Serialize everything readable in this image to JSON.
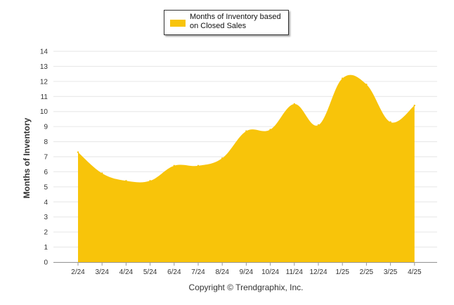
{
  "colors": {
    "area": "#f8c40a",
    "grid": "#e6e6e6",
    "axis": "#999999"
  },
  "legend": {
    "label": "Months of Inventory based on Closed Sales"
  },
  "footer": {
    "copyright": "Copyright © Trendgraphix, Inc."
  },
  "chart_data": {
    "type": "area",
    "ylabel": "Months of Inventory",
    "ylim": [
      0,
      14
    ],
    "yticks": [
      0,
      1,
      2,
      3,
      4,
      5,
      6,
      7,
      8,
      9,
      10,
      11,
      12,
      13,
      14
    ],
    "categories": [
      "2/24",
      "3/24",
      "4/24",
      "5/24",
      "6/24",
      "7/24",
      "8/24",
      "9/24",
      "10/24",
      "11/24",
      "12/24",
      "1/25",
      "2/25",
      "3/25",
      "4/25"
    ],
    "series": [
      {
        "name": "Months of Inventory based on Closed Sales",
        "values": [
          7.3,
          5.9,
          5.4,
          5.4,
          6.4,
          6.4,
          6.9,
          8.7,
          8.8,
          10.5,
          9.1,
          12.2,
          11.8,
          9.3,
          10.4
        ]
      }
    ],
    "grid": true,
    "legend_position": "top-center"
  }
}
